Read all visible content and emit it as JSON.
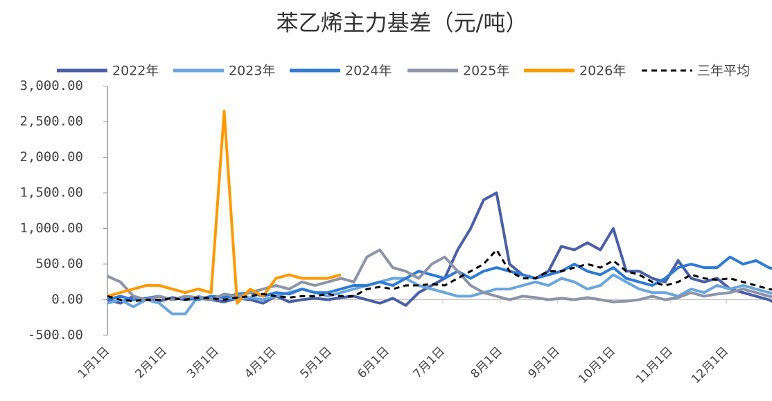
{
  "chart_data": {
    "type": "line",
    "title": "苯乙烯主力基差（元/吨）",
    "x": [
      0,
      7,
      14,
      21,
      28,
      35,
      42,
      49,
      56,
      63,
      70,
      77,
      84,
      91,
      98,
      105,
      112,
      119,
      126,
      133,
      140,
      147,
      154,
      161,
      168,
      175,
      182,
      189,
      196,
      203,
      210,
      217,
      224,
      231,
      238,
      245,
      252,
      259,
      266,
      273,
      280,
      287,
      294,
      301,
      308,
      315,
      322,
      329,
      336,
      343,
      350,
      357,
      364
    ],
    "xlim": [
      0,
      365
    ],
    "xticks": [
      {
        "value": 0,
        "label": "1月1日"
      },
      {
        "value": 31,
        "label": "2月1日"
      },
      {
        "value": 59,
        "label": "3月1日"
      },
      {
        "value": 90,
        "label": "4月1日"
      },
      {
        "value": 120,
        "label": "5月1日"
      },
      {
        "value": 151,
        "label": "6月1日"
      },
      {
        "value": 181,
        "label": "7月1日"
      },
      {
        "value": 212,
        "label": "8月1日"
      },
      {
        "value": 243,
        "label": "9月1日"
      },
      {
        "value": 273,
        "label": "10月1日"
      },
      {
        "value": 304,
        "label": "11月1日"
      },
      {
        "value": 334,
        "label": "12月1日"
      }
    ],
    "ylim": [
      -500,
      3000
    ],
    "yticks": [
      {
        "value": -500,
        "label": "-500.00"
      },
      {
        "value": 0,
        "label": "0.00"
      },
      {
        "value": 500,
        "label": "500.00"
      },
      {
        "value": 1000,
        "label": "1,000.00"
      },
      {
        "value": 1500,
        "label": "1,500.00"
      },
      {
        "value": 2000,
        "label": "2,000.00"
      },
      {
        "value": 2500,
        "label": "2,500.00"
      },
      {
        "value": 3000,
        "label": "3,000.00"
      }
    ],
    "legend": "top",
    "series": [
      {
        "name": "2022年",
        "color": "#4a5fa8",
        "dash": false,
        "values": [
          0,
          -50,
          50,
          0,
          -20,
          30,
          0,
          20,
          0,
          -30,
          20,
          0,
          -50,
          50,
          -30,
          0,
          20,
          0,
          30,
          50,
          0,
          -50,
          20,
          -80,
          100,
          200,
          300,
          700,
          1000,
          1400,
          1500,
          500,
          350,
          300,
          400,
          750,
          700,
          800,
          700,
          1000,
          400,
          400,
          300,
          250,
          550,
          300,
          250,
          300,
          150,
          100,
          50,
          0,
          -100
        ]
      },
      {
        "name": "2023年",
        "color": "#6aa6dc",
        "dash": false,
        "values": [
          -50,
          0,
          -100,
          0,
          -50,
          -200,
          -200,
          50,
          0,
          50,
          0,
          30,
          0,
          50,
          100,
          150,
          100,
          50,
          100,
          150,
          200,
          250,
          300,
          300,
          200,
          150,
          100,
          50,
          50,
          100,
          150,
          150,
          200,
          250,
          200,
          300,
          250,
          150,
          200,
          350,
          250,
          150,
          100,
          100,
          50,
          150,
          100,
          200,
          150,
          200,
          150,
          100,
          50
        ]
      },
      {
        "name": "2024年",
        "color": "#2e7bd6",
        "dash": false,
        "values": [
          0,
          50,
          0,
          20,
          50,
          0,
          30,
          0,
          50,
          30,
          80,
          100,
          50,
          100,
          80,
          150,
          100,
          100,
          150,
          200,
          200,
          250,
          200,
          300,
          400,
          350,
          300,
          400,
          300,
          400,
          450,
          400,
          350,
          300,
          350,
          400,
          500,
          400,
          350,
          450,
          300,
          250,
          200,
          300,
          450,
          500,
          450,
          450,
          600,
          500,
          550,
          450,
          400
        ]
      },
      {
        "name": "2025年",
        "color": "#8c94a8",
        "dash": false,
        "values": [
          330,
          250,
          50,
          0,
          50,
          0,
          50,
          30,
          0,
          80,
          50,
          100,
          150,
          200,
          150,
          250,
          200,
          250,
          300,
          250,
          600,
          700,
          450,
          400,
          300,
          500,
          600,
          400,
          200,
          100,
          50,
          0,
          50,
          30,
          0,
          20,
          0,
          30,
          0,
          -30,
          -20,
          0,
          50,
          0,
          30,
          100,
          50,
          80,
          100,
          150,
          100,
          50,
          0
        ]
      },
      {
        "name": "2026年",
        "color": "#ff9900",
        "dash": false,
        "values": [
          50,
          100,
          150,
          200,
          200,
          150,
          100,
          150,
          100,
          2650,
          -50,
          150,
          50,
          300,
          350,
          300,
          300,
          300,
          350,
          null,
          null,
          null,
          null,
          null,
          null,
          null,
          null,
          null,
          null,
          null,
          null,
          null,
          null,
          null,
          null,
          null,
          null,
          null,
          null,
          null,
          null,
          null,
          null,
          null,
          null,
          null,
          null,
          null,
          null,
          null,
          null,
          null,
          null
        ]
      },
      {
        "name": "三年平均",
        "color": "#000000",
        "dash": true,
        "values": [
          50,
          0,
          -20,
          0,
          0,
          20,
          0,
          30,
          20,
          0,
          30,
          50,
          80,
          50,
          30,
          50,
          50,
          80,
          50,
          50,
          150,
          180,
          150,
          200,
          200,
          220,
          200,
          300,
          400,
          500,
          700,
          400,
          300,
          300,
          400,
          400,
          450,
          500,
          450,
          550,
          400,
          350,
          250,
          200,
          250,
          350,
          300,
          280,
          300,
          250,
          200,
          150,
          120
        ]
      }
    ]
  }
}
